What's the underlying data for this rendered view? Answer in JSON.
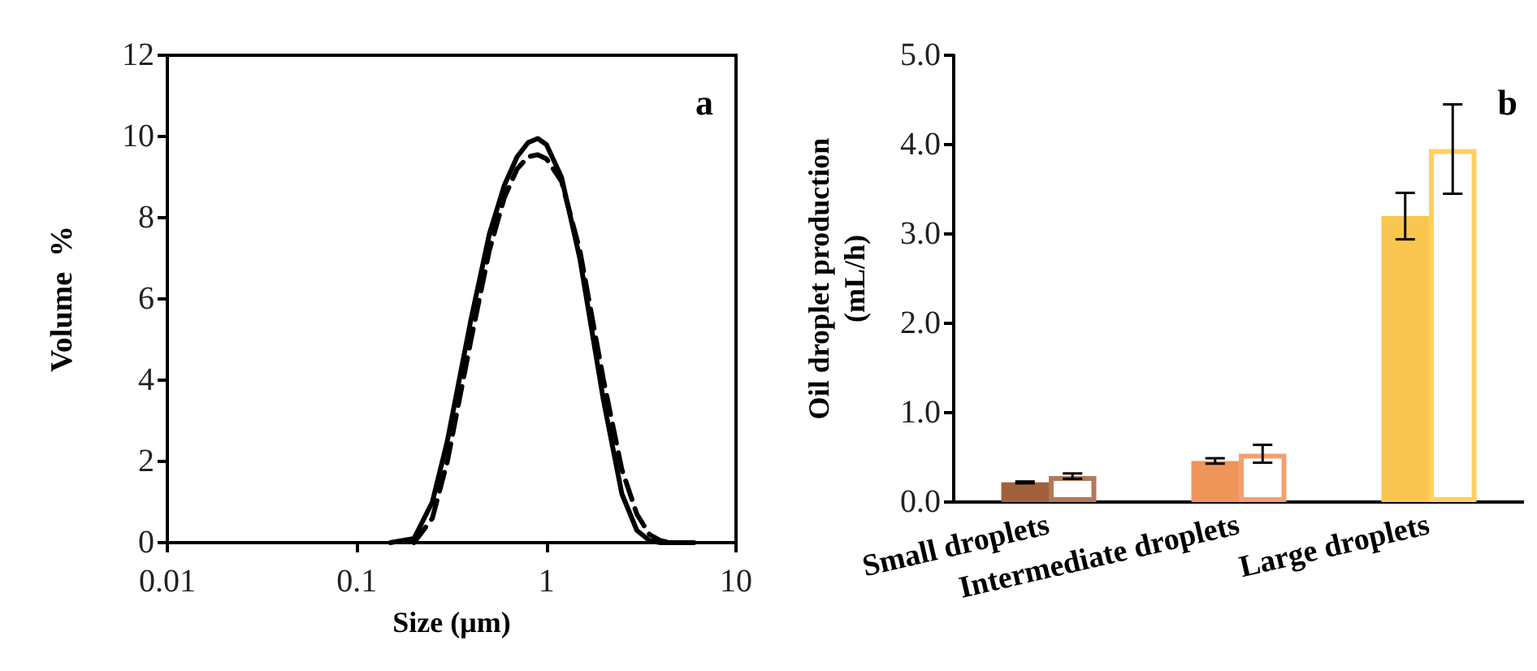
{
  "chart_data": [
    {
      "type": "line",
      "xlabel": "Size (μm)",
      "ylabel": "Volume  %",
      "annotations": [
        "a"
      ],
      "log": "x",
      "xlim": [
        0.01,
        10
      ],
      "xticks": [
        0.01,
        0.1,
        1,
        10
      ],
      "ylim": [
        0,
        12
      ],
      "yticks": [
        0,
        2,
        4,
        6,
        8,
        10,
        12
      ],
      "grid": false,
      "marker": "none",
      "series": [
        {
          "color": "#000000",
          "line_style": "solid",
          "x": [
            0.15,
            0.2,
            0.25,
            0.3,
            0.4,
            0.5,
            0.6,
            0.7,
            0.8,
            0.9,
            1.0,
            1.2,
            1.5,
            2.0,
            2.5,
            3.0,
            3.5,
            4.0,
            5.0
          ],
          "values": [
            0,
            0.1,
            1.0,
            2.5,
            5.5,
            7.6,
            8.8,
            9.5,
            9.85,
            9.95,
            9.8,
            9.0,
            7.0,
            3.5,
            1.2,
            0.3,
            0.05,
            0,
            0
          ]
        },
        {
          "color": "#000000",
          "line_style": "dashed",
          "x": [
            0.2,
            0.25,
            0.3,
            0.4,
            0.5,
            0.6,
            0.7,
            0.8,
            0.9,
            1.0,
            1.2,
            1.5,
            2.0,
            2.5,
            3.0,
            3.5,
            4.0,
            4.5,
            6.0
          ],
          "values": [
            0,
            0.6,
            2.0,
            5.0,
            7.2,
            8.5,
            9.2,
            9.5,
            9.55,
            9.45,
            8.9,
            7.2,
            4.0,
            1.8,
            0.7,
            0.2,
            0.05,
            0,
            0
          ]
        }
      ]
    },
    {
      "type": "bar",
      "ylabel": "Oil droplet production\n(mL/h)",
      "annotations": [
        "b"
      ],
      "categories": [
        "Small droplets",
        "Intermediate droplets",
        "Large droplets"
      ],
      "ylim": [
        0,
        5
      ],
      "yticks": [
        {
          "value": 0,
          "label": "0.0"
        },
        {
          "value": 1,
          "label": "1.0"
        },
        {
          "value": 2,
          "label": "2.0"
        },
        {
          "value": 3,
          "label": "3.0"
        },
        {
          "value": 4,
          "label": "4.0"
        },
        {
          "value": 5,
          "label": "5.0"
        }
      ],
      "grid": false,
      "series": [
        {
          "colors": [
            "#a0603c",
            "#f0955a",
            "#f9c74f"
          ],
          "values": [
            0.22,
            0.46,
            3.2
          ],
          "errors": [
            0.01,
            0.03,
            0.26
          ]
        },
        {
          "color": "#ffffff",
          "colors": [
            "#b07a5a",
            "#f3a070",
            "#ffd060"
          ],
          "values": [
            0.29,
            0.54,
            3.95
          ],
          "errors": [
            0.03,
            0.1,
            0.5
          ]
        }
      ]
    }
  ]
}
